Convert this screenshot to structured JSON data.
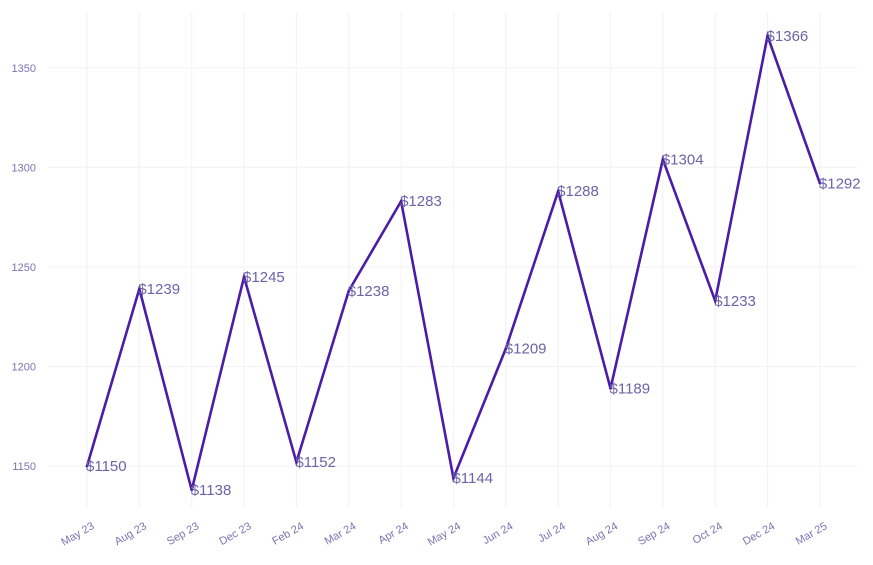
{
  "chart_data": {
    "type": "line",
    "title": "",
    "xlabel": "",
    "ylabel": "",
    "categories": [
      "May 23",
      "Aug 23",
      "Sep 23",
      "Dec 23",
      "Feb 24",
      "Mar 24",
      "Apr 24",
      "May 24",
      "Jun 24",
      "Jul 24",
      "Aug 24",
      "Sep 24",
      "Oct 24",
      "Dec 24",
      "Mar 25"
    ],
    "values": [
      1150,
      1239,
      1138,
      1245,
      1152,
      1238,
      1283,
      1144,
      1209,
      1288,
      1189,
      1304,
      1233,
      1366,
      1292
    ],
    "data_labels": [
      "$1150",
      "$1239",
      "$1138",
      "$1245",
      "$1152",
      "$1238",
      "$1283",
      "$1144",
      "$1209",
      "$1288",
      "$1189",
      "$1304",
      "$1233",
      "$1366",
      "$1292"
    ],
    "ylim": [
      1129,
      1378
    ],
    "y_ticks": [
      1150,
      1200,
      1250,
      1300,
      1350
    ],
    "y_tick_labels": [
      "1150",
      "1200",
      "1250",
      "1300",
      "1350"
    ],
    "grid": true,
    "legend": "none",
    "colors": {
      "line": "#4b1ca8",
      "grid": "#f4f4f8",
      "text": "#7a74b3"
    }
  }
}
